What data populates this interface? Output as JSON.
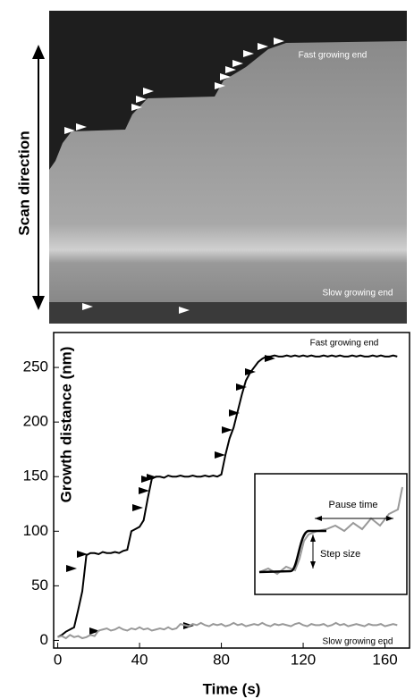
{
  "kymograph": {
    "scan_label": "Scan direction",
    "fast_label": "Fast growing end",
    "slow_label": "Slow growing end"
  },
  "chart_data": {
    "type": "line",
    "xlabel": "Time (s)",
    "ylabel": "Growth distance (nm)",
    "annotations": [
      "Fast growing end",
      "Slow growing end"
    ],
    "inset": {
      "pause_label": "Pause time",
      "step_label": "Step size"
    },
    "xlim": [
      -2,
      172
    ],
    "ylim": [
      -7,
      282
    ],
    "xticks": [
      0,
      40,
      80,
      120,
      160
    ],
    "yticks": [
      0,
      50,
      100,
      150,
      200,
      250
    ],
    "x": [
      0,
      2,
      4,
      6,
      8,
      10,
      12,
      14,
      16,
      18,
      20,
      22,
      24,
      26,
      28,
      30,
      32,
      34,
      36,
      38,
      40,
      42,
      44,
      46,
      48,
      50,
      52,
      54,
      56,
      58,
      60,
      62,
      64,
      66,
      68,
      70,
      72,
      74,
      76,
      78,
      80,
      82,
      84,
      86,
      88,
      90,
      92,
      94,
      96,
      98,
      100,
      102,
      104,
      106,
      108,
      110,
      112,
      114,
      116,
      118,
      120,
      122,
      124,
      126,
      128,
      130,
      132,
      134,
      136,
      138,
      140,
      142,
      144,
      146,
      148,
      150,
      152,
      154,
      156,
      158,
      160,
      162,
      164,
      166
    ],
    "series": [
      {
        "name": "Fast growing end",
        "color": "#000000",
        "values": [
          3,
          5,
          8,
          10,
          12,
          28,
          45,
          78,
          80,
          80,
          79,
          81,
          80,
          80,
          81,
          80,
          82,
          83,
          100,
          102,
          104,
          110,
          130,
          148,
          150,
          150,
          149,
          151,
          150,
          150,
          151,
          150,
          150,
          151,
          150,
          150,
          151,
          150,
          151,
          150,
          152,
          170,
          185,
          195,
          210,
          225,
          238,
          245,
          250,
          255,
          258,
          260,
          260,
          261,
          260,
          260,
          261,
          260,
          261,
          260,
          261,
          260,
          261,
          260,
          260,
          261,
          260,
          261,
          260,
          261,
          260,
          260,
          261,
          260,
          261,
          260,
          260,
          261,
          260,
          261,
          260,
          260,
          261,
          260
        ]
      },
      {
        "name": "Slow growing end",
        "color": "#999999",
        "values": [
          3,
          4,
          2,
          5,
          3,
          4,
          2,
          3,
          5,
          4,
          9,
          10,
          11,
          9,
          10,
          12,
          10,
          9,
          11,
          10,
          12,
          10,
          11,
          9,
          10,
          11,
          10,
          12,
          10,
          11,
          15,
          14,
          13,
          15,
          14,
          16,
          14,
          13,
          15,
          14,
          15,
          13,
          14,
          16,
          14,
          15,
          13,
          14,
          15,
          14,
          16,
          14,
          13,
          15,
          14,
          15,
          14,
          13,
          15,
          16,
          14,
          13,
          15,
          14,
          14,
          15,
          13,
          14,
          16,
          14,
          15,
          13,
          14,
          15,
          14,
          13,
          15,
          14,
          14,
          15,
          13,
          14,
          15,
          14
        ]
      }
    ]
  }
}
